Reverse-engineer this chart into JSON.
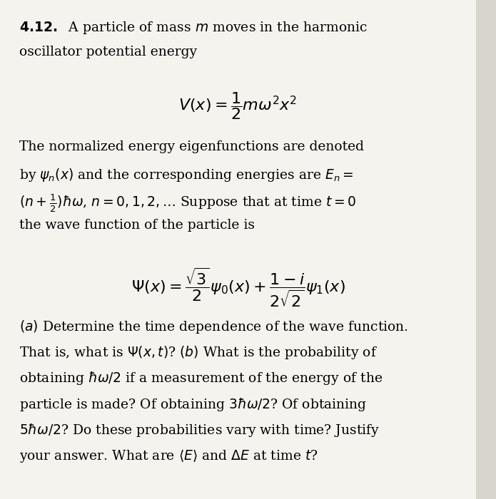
{
  "background_color": "#d8d5cc",
  "paper_color": "#f5f3ee",
  "title_bold": "4.12.",
  "title_normal": "  A particle of mass ",
  "title_italic": "m",
  "title_rest": " moves in the harmonic\noscillator potential energy",
  "equation1": "$V(x) = \\dfrac{1}{2}m\\omega^2x^2$",
  "para1_line1": "The normalized energy eigenfunctions are denoted",
  "para1_line2": "by $\\psi_n(x)$ and the corresponding energies are $E_n =$",
  "para1_line3": "$(n + \\frac{1}{2})\\hbar\\omega$, $n = 0, 1, 2, \\ldots$ Suppose that at time $t = 0$",
  "para1_line4": "the wave function of the particle is",
  "equation2": "$\\Psi(x) = \\dfrac{\\sqrt{3}}{2}\\psi_0(x) + \\dfrac{1-i}{2\\sqrt{2}}\\psi_1(x)$",
  "para2_line1": "$(a)$ Determine the time dependence of the wave function.",
  "para2_line2": "That is, what is $\\Psi(x, t)$? $(b)$ What is the probability of",
  "para2_line3": "obtaining $\\hbar\\omega/2$ if a measurement of the energy of the",
  "para2_line4": "particle is made? Of obtaining $3\\hbar\\omega/2$? Of obtaining",
  "para2_line5": "$5\\hbar\\omega/2$? Do these probabilities vary with time? Justify",
  "para2_line6": "your answer. What are $\\langle E \\rangle$ and $\\Delta E$ at time $t$?"
}
